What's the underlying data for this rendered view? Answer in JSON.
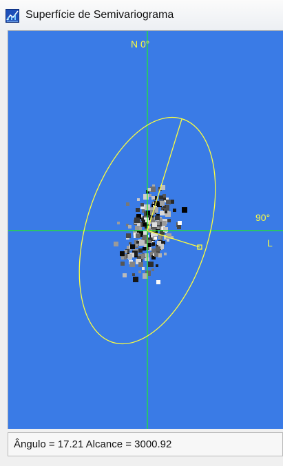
{
  "window": {
    "title": "Superfície de Semivariograma",
    "icon": "semivariogram-window-icon"
  },
  "plot": {
    "background_color": "#3a7be6",
    "axis_color": "#22ee22",
    "ellipse_color": "#ffff3c",
    "label_north": "N 0°",
    "label_east_deg": "90°",
    "label_east": "L"
  },
  "status": {
    "text": "Ângulo = 17.21   Alcance = 3000.92"
  }
}
